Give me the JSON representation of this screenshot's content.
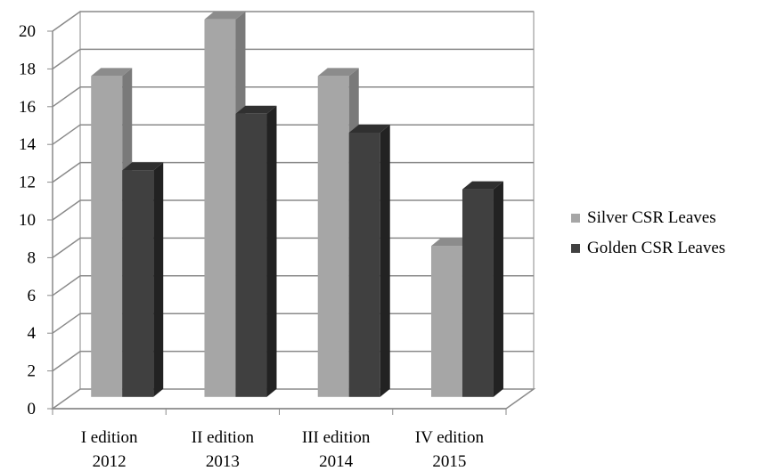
{
  "chart_data": {
    "type": "bar",
    "categories": [
      [
        "I edition",
        "2012"
      ],
      [
        "II edition",
        "2013"
      ],
      [
        "III edition",
        "2014"
      ],
      [
        "IV edition",
        "2015"
      ]
    ],
    "series": [
      {
        "name": "Silver CSR Leaves",
        "values": [
          17,
          20,
          17,
          8
        ],
        "color": "#a6a6a6",
        "side_color": "#7a7a7a",
        "top_color": "#8c8c8c"
      },
      {
        "name": "Golden CSR Leaves",
        "values": [
          12,
          15,
          14,
          11
        ],
        "color": "#404040",
        "side_color": "#222222",
        "top_color": "#303030"
      }
    ],
    "y_ticks": [
      "0",
      "2",
      "4",
      "6",
      "8",
      "10",
      "12",
      "14",
      "16",
      "18",
      "20"
    ],
    "ylim": [
      0,
      20
    ],
    "grid": true,
    "legend_position": "right",
    "three_d": true
  }
}
